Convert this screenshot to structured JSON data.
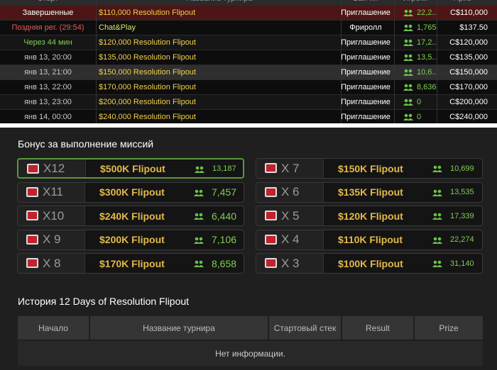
{
  "tournament_table": {
    "header": [
      "Старт",
      "Название турнира",
      "Бай-ин",
      "Игроки",
      "Приз"
    ],
    "rows": [
      {
        "start": "Завершенные",
        "name": "$110,000 Resolution Flipout",
        "type": "Приглашение",
        "players": "22,2..",
        "prize": "C$110,000"
      },
      {
        "start": "Поздняя рег. (29:54)",
        "name": "Chat&Play",
        "type": "Фриролл",
        "players": "1,765",
        "prize": "$137.50"
      },
      {
        "start": "Через 44 мин",
        "name": "$120,000 Resolution Flipout",
        "type": "Приглашение",
        "players": "17,2..",
        "prize": "C$120,000"
      },
      {
        "start": "янв 13, 20:00",
        "name": "$135,000 Resolution Flipout",
        "type": "Приглашение",
        "players": "13,5..",
        "prize": "C$135,000"
      },
      {
        "start": "янв 13, 21:00",
        "name": "$150,000 Resolution Flipout",
        "type": "Приглашение",
        "players": "10,6..",
        "prize": "C$150,000"
      },
      {
        "start": "янв 13, 22:00",
        "name": "$170,000 Resolution Flipout",
        "type": "Приглашение",
        "players": "8,636",
        "prize": "C$170,000"
      },
      {
        "start": "янв 13, 23:00",
        "name": "$200,000 Resolution Flipout",
        "type": "Приглашение",
        "players": "0",
        "prize": "C$200,000"
      },
      {
        "start": "янв 14, 00:00",
        "name": "$240,000 Resolution Flipout",
        "type": "Приглашение",
        "players": "0",
        "prize": "C$240,000"
      }
    ]
  },
  "missions": {
    "title": "Бонус за выполнение миссий",
    "cards": [
      {
        "multiplier": "X12",
        "name": "$500K Flipout",
        "players": "13,187"
      },
      {
        "multiplier": "X11",
        "name": "$300K Flipout",
        "players": "7,457"
      },
      {
        "multiplier": "X10",
        "name": "$240K Flipout",
        "players": "6,440"
      },
      {
        "multiplier": "X 9",
        "name": "$200K Flipout",
        "players": "7,106"
      },
      {
        "multiplier": "X 8",
        "name": "$170K Flipout",
        "players": "8,658"
      },
      {
        "multiplier": "X 7",
        "name": "$150K Flipout",
        "players": "10,699"
      },
      {
        "multiplier": "X 6",
        "name": "$135K Flipout",
        "players": "13,535"
      },
      {
        "multiplier": "X 5",
        "name": "$120K Flipout",
        "players": "17,339"
      },
      {
        "multiplier": "X 4",
        "name": "$110K Flipout",
        "players": "22,274"
      },
      {
        "multiplier": "X 3",
        "name": "$100K Flipout",
        "players": "31,140"
      }
    ]
  },
  "history": {
    "title": "История 12 Days of Resolution Flipout",
    "header": [
      "Начало",
      "Название турнира",
      "Стартовый стек",
      "Result",
      "Prize"
    ],
    "empty": "Нет информации."
  }
}
